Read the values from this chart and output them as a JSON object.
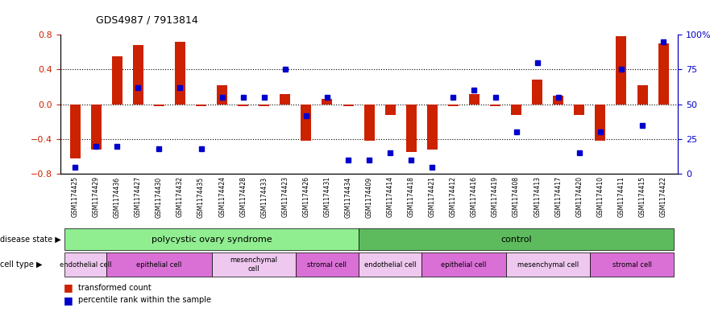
{
  "title": "GDS4987 / 7913814",
  "samples": [
    "GSM1174425",
    "GSM1174429",
    "GSM1174436",
    "GSM1174427",
    "GSM1174430",
    "GSM1174432",
    "GSM1174435",
    "GSM1174424",
    "GSM1174428",
    "GSM1174433",
    "GSM1174423",
    "GSM1174426",
    "GSM1174431",
    "GSM1174434",
    "GSM1174409",
    "GSM1174414",
    "GSM1174418",
    "GSM1174421",
    "GSM1174412",
    "GSM1174416",
    "GSM1174419",
    "GSM1174408",
    "GSM1174413",
    "GSM1174417",
    "GSM1174420",
    "GSM1174410",
    "GSM1174411",
    "GSM1174415",
    "GSM1174422"
  ],
  "bar_values": [
    -0.62,
    -0.52,
    0.55,
    0.68,
    -0.02,
    0.72,
    -0.02,
    0.22,
    -0.02,
    -0.02,
    0.12,
    -0.42,
    0.06,
    -0.02,
    -0.42,
    -0.12,
    -0.55,
    -0.52,
    -0.02,
    0.12,
    -0.02,
    -0.12,
    0.28,
    0.1,
    -0.12,
    -0.42,
    0.78,
    0.22,
    0.7
  ],
  "percentile_values": [
    5,
    20,
    20,
    62,
    18,
    62,
    18,
    55,
    55,
    55,
    75,
    42,
    55,
    10,
    10,
    15,
    10,
    5,
    55,
    60,
    55,
    30,
    80,
    55,
    15,
    30,
    75,
    35,
    95
  ],
  "cell_types_pcos": [
    {
      "label": "endothelial cell",
      "start": 0,
      "end": 1
    },
    {
      "label": "epithelial cell",
      "start": 2,
      "end": 6
    },
    {
      "label": "mesenchymal\ncell",
      "start": 7,
      "end": 10
    },
    {
      "label": "stromal cell",
      "start": 11,
      "end": 13
    }
  ],
  "cell_types_control": [
    {
      "label": "endothelial cell",
      "start": 14,
      "end": 16
    },
    {
      "label": "epithelial cell",
      "start": 17,
      "end": 20
    },
    {
      "label": "mesenchymal cell",
      "start": 21,
      "end": 24
    },
    {
      "label": "stromal cell",
      "start": 25,
      "end": 28
    }
  ],
  "pcos_count": 14,
  "ctrl_count": 15,
  "bar_color": "#CC2200",
  "dot_color": "#0000CC",
  "ylim": [
    -0.8,
    0.8
  ],
  "y2lim": [
    0,
    100
  ],
  "yticks": [
    -0.8,
    -0.4,
    0.0,
    0.4,
    0.8
  ],
  "y2ticks": [
    0,
    25,
    50,
    75,
    100
  ],
  "disease_green_light": "#90EE90",
  "disease_green_dark": "#5DBB5D",
  "cell_purple_light": "#EEC8EE",
  "cell_purple_dark": "#DA70D6"
}
